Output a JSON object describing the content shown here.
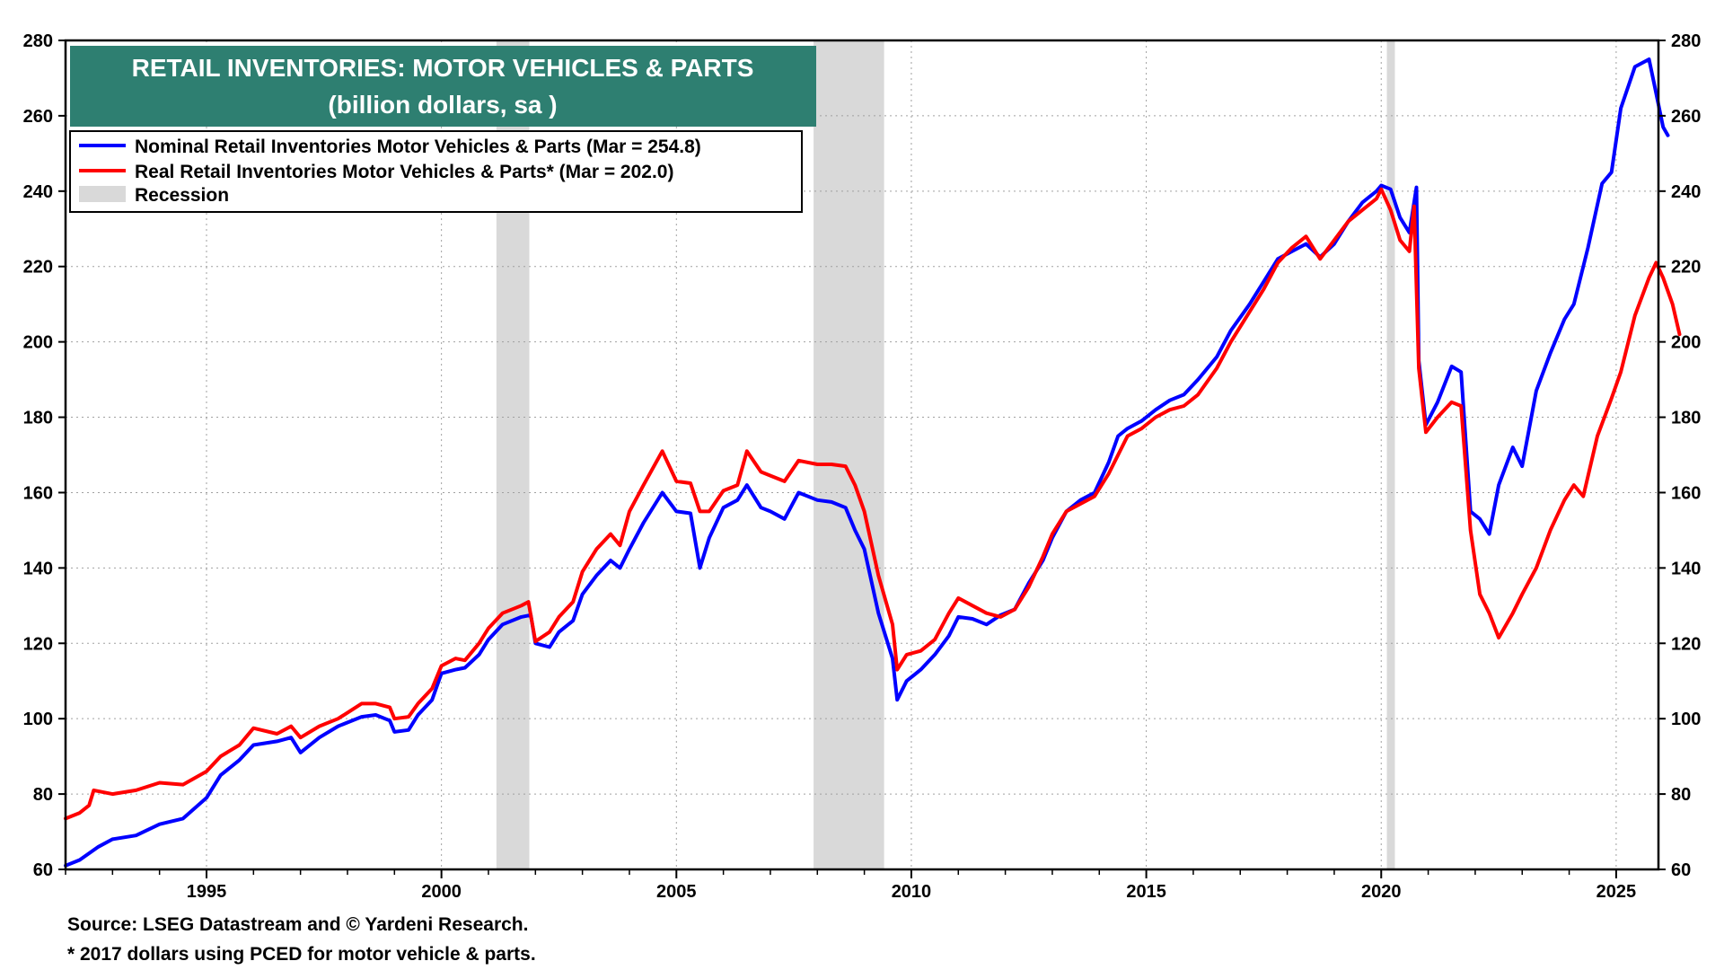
{
  "chart_data": {
    "type": "line",
    "title": "RETAIL INVENTORIES: MOTOR VEHICLES & PARTS",
    "subtitle": "(billion dollars, sa )",
    "ylim": [
      60,
      280
    ],
    "yticks": [
      60,
      80,
      100,
      120,
      140,
      160,
      180,
      200,
      220,
      240,
      260,
      280
    ],
    "xlim": [
      1992.0,
      2025.9
    ],
    "xticks": [
      1995,
      2000,
      2005,
      2010,
      2015,
      2020,
      2025
    ],
    "grid": true,
    "legend_position": "top-left",
    "recession_label": "Recession",
    "recessions": [
      [
        2001.17,
        2001.87
      ],
      [
        2007.92,
        2009.42
      ],
      [
        2020.12,
        2020.29
      ]
    ],
    "series": [
      {
        "name": "Nominal Retail Inventories Motor Vehicles & Parts (Mar = 254.8)",
        "color": "#0000ff",
        "points": [
          [
            1992.0,
            61
          ],
          [
            1992.3,
            62.5
          ],
          [
            1992.7,
            66
          ],
          [
            1993.0,
            68
          ],
          [
            1993.5,
            69
          ],
          [
            1994.0,
            72
          ],
          [
            1994.5,
            73.5
          ],
          [
            1995.0,
            79
          ],
          [
            1995.3,
            85
          ],
          [
            1995.7,
            89
          ],
          [
            1996.0,
            93
          ],
          [
            1996.5,
            94
          ],
          [
            1996.8,
            95
          ],
          [
            1997.0,
            91
          ],
          [
            1997.4,
            95
          ],
          [
            1997.8,
            98
          ],
          [
            1998.3,
            100.5
          ],
          [
            1998.6,
            101
          ],
          [
            1998.9,
            99.5
          ],
          [
            1999.0,
            96.5
          ],
          [
            1999.3,
            97
          ],
          [
            1999.5,
            101
          ],
          [
            1999.8,
            105
          ],
          [
            2000.0,
            112
          ],
          [
            2000.3,
            113
          ],
          [
            2000.5,
            113.5
          ],
          [
            2000.8,
            117
          ],
          [
            2001.0,
            121
          ],
          [
            2001.3,
            125
          ],
          [
            2001.7,
            127
          ],
          [
            2001.9,
            127.5
          ],
          [
            2002.0,
            120
          ],
          [
            2002.3,
            119
          ],
          [
            2002.5,
            123
          ],
          [
            2002.8,
            126
          ],
          [
            2003.0,
            133
          ],
          [
            2003.3,
            138
          ],
          [
            2003.6,
            142
          ],
          [
            2003.8,
            140
          ],
          [
            2004.0,
            145
          ],
          [
            2004.3,
            152
          ],
          [
            2004.7,
            160
          ],
          [
            2005.0,
            155
          ],
          [
            2005.3,
            154.5
          ],
          [
            2005.5,
            140
          ],
          [
            2005.7,
            148
          ],
          [
            2006.0,
            156
          ],
          [
            2006.3,
            158
          ],
          [
            2006.5,
            162
          ],
          [
            2006.8,
            156
          ],
          [
            2007.0,
            155
          ],
          [
            2007.3,
            153
          ],
          [
            2007.6,
            160
          ],
          [
            2008.0,
            158
          ],
          [
            2008.3,
            157.5
          ],
          [
            2008.6,
            156
          ],
          [
            2008.8,
            150
          ],
          [
            2009.0,
            145
          ],
          [
            2009.3,
            128
          ],
          [
            2009.6,
            116
          ],
          [
            2009.7,
            105
          ],
          [
            2009.9,
            110
          ],
          [
            2010.2,
            113
          ],
          [
            2010.5,
            117
          ],
          [
            2010.8,
            122
          ],
          [
            2011.0,
            127
          ],
          [
            2011.3,
            126.5
          ],
          [
            2011.6,
            125
          ],
          [
            2011.9,
            127.5
          ],
          [
            2012.2,
            129
          ],
          [
            2012.5,
            136
          ],
          [
            2012.8,
            142
          ],
          [
            2013.0,
            148
          ],
          [
            2013.3,
            155
          ],
          [
            2013.6,
            158
          ],
          [
            2013.9,
            160
          ],
          [
            2014.2,
            168
          ],
          [
            2014.4,
            175
          ],
          [
            2014.6,
            177
          ],
          [
            2014.9,
            179
          ],
          [
            2015.2,
            182
          ],
          [
            2015.5,
            184.5
          ],
          [
            2015.8,
            186
          ],
          [
            2016.1,
            190
          ],
          [
            2016.5,
            196
          ],
          [
            2016.8,
            203
          ],
          [
            2017.2,
            210
          ],
          [
            2017.5,
            216
          ],
          [
            2017.8,
            222
          ],
          [
            2018.1,
            224
          ],
          [
            2018.4,
            226
          ],
          [
            2018.7,
            222.5
          ],
          [
            2019.0,
            226
          ],
          [
            2019.3,
            232
          ],
          [
            2019.6,
            237
          ],
          [
            2019.9,
            240
          ],
          [
            2020.0,
            241.5
          ],
          [
            2020.2,
            240.5
          ],
          [
            2020.4,
            233
          ],
          [
            2020.6,
            229
          ],
          [
            2020.75,
            241
          ],
          [
            2020.8,
            195
          ],
          [
            2020.95,
            178
          ],
          [
            2021.2,
            184
          ],
          [
            2021.5,
            193.5
          ],
          [
            2021.7,
            192
          ],
          [
            2021.9,
            155
          ],
          [
            2022.1,
            153
          ],
          [
            2022.3,
            149
          ],
          [
            2022.5,
            162
          ],
          [
            2022.8,
            172
          ],
          [
            2023.0,
            167
          ],
          [
            2023.3,
            187
          ],
          [
            2023.6,
            197
          ],
          [
            2023.9,
            206
          ],
          [
            2024.1,
            210
          ],
          [
            2024.4,
            225
          ],
          [
            2024.7,
            242
          ],
          [
            2024.9,
            245
          ],
          [
            2025.1,
            262
          ],
          [
            2025.4,
            273
          ],
          [
            2025.7,
            275
          ],
          [
            2025.8,
            269
          ],
          [
            2026.0,
            257
          ],
          [
            2026.1,
            254.8
          ]
        ]
      },
      {
        "name": "Real Retail Inventories Motor Vehicles & Parts* (Mar = 202.0)",
        "color": "#ff0000",
        "points": [
          [
            1992.0,
            73.5
          ],
          [
            1992.3,
            75
          ],
          [
            1992.5,
            77
          ],
          [
            1992.6,
            81
          ],
          [
            1993.0,
            80
          ],
          [
            1993.5,
            81
          ],
          [
            1994.0,
            83
          ],
          [
            1994.5,
            82.5
          ],
          [
            1995.0,
            86
          ],
          [
            1995.3,
            90
          ],
          [
            1995.7,
            93
          ],
          [
            1996.0,
            97.5
          ],
          [
            1996.5,
            96
          ],
          [
            1996.8,
            98
          ],
          [
            1997.0,
            95
          ],
          [
            1997.4,
            98
          ],
          [
            1997.8,
            100
          ],
          [
            1998.3,
            104
          ],
          [
            1998.6,
            104
          ],
          [
            1998.9,
            103
          ],
          [
            1999.0,
            100
          ],
          [
            1999.3,
            100.5
          ],
          [
            1999.5,
            104
          ],
          [
            1999.8,
            108
          ],
          [
            2000.0,
            114
          ],
          [
            2000.3,
            116
          ],
          [
            2000.5,
            115.5
          ],
          [
            2000.8,
            120
          ],
          [
            2001.0,
            124
          ],
          [
            2001.3,
            128
          ],
          [
            2001.7,
            130
          ],
          [
            2001.85,
            131
          ],
          [
            2002.0,
            120.5
          ],
          [
            2002.3,
            123
          ],
          [
            2002.5,
            127
          ],
          [
            2002.8,
            131
          ],
          [
            2003.0,
            139
          ],
          [
            2003.3,
            145
          ],
          [
            2003.6,
            149
          ],
          [
            2003.8,
            146
          ],
          [
            2004.0,
            155
          ],
          [
            2004.3,
            162
          ],
          [
            2004.7,
            171
          ],
          [
            2005.0,
            163
          ],
          [
            2005.3,
            162.5
          ],
          [
            2005.5,
            155
          ],
          [
            2005.7,
            155
          ],
          [
            2006.0,
            160.5
          ],
          [
            2006.3,
            162
          ],
          [
            2006.5,
            171
          ],
          [
            2006.8,
            165.5
          ],
          [
            2007.0,
            164.5
          ],
          [
            2007.3,
            163
          ],
          [
            2007.6,
            168.5
          ],
          [
            2008.0,
            167.5
          ],
          [
            2008.3,
            167.5
          ],
          [
            2008.6,
            167
          ],
          [
            2008.8,
            162
          ],
          [
            2009.0,
            155
          ],
          [
            2009.3,
            138
          ],
          [
            2009.6,
            125
          ],
          [
            2009.7,
            113
          ],
          [
            2009.9,
            117
          ],
          [
            2010.2,
            118
          ],
          [
            2010.5,
            121
          ],
          [
            2010.8,
            128
          ],
          [
            2011.0,
            132
          ],
          [
            2011.3,
            130
          ],
          [
            2011.6,
            128
          ],
          [
            2011.9,
            127
          ],
          [
            2012.2,
            129
          ],
          [
            2012.5,
            135
          ],
          [
            2012.8,
            143
          ],
          [
            2013.0,
            149
          ],
          [
            2013.3,
            155
          ],
          [
            2013.6,
            157
          ],
          [
            2013.9,
            159
          ],
          [
            2014.2,
            165
          ],
          [
            2014.4,
            170
          ],
          [
            2014.6,
            175
          ],
          [
            2014.9,
            177
          ],
          [
            2015.2,
            180
          ],
          [
            2015.5,
            182
          ],
          [
            2015.8,
            183
          ],
          [
            2016.1,
            186
          ],
          [
            2016.5,
            193
          ],
          [
            2016.8,
            200
          ],
          [
            2017.2,
            208
          ],
          [
            2017.5,
            214
          ],
          [
            2017.8,
            221
          ],
          [
            2018.1,
            225
          ],
          [
            2018.4,
            228
          ],
          [
            2018.7,
            222
          ],
          [
            2019.0,
            227
          ],
          [
            2019.3,
            232
          ],
          [
            2019.6,
            235
          ],
          [
            2019.9,
            238
          ],
          [
            2020.0,
            240.5
          ],
          [
            2020.2,
            235
          ],
          [
            2020.4,
            227
          ],
          [
            2020.6,
            224
          ],
          [
            2020.7,
            236
          ],
          [
            2020.8,
            193
          ],
          [
            2020.95,
            176
          ],
          [
            2021.2,
            180
          ],
          [
            2021.5,
            184
          ],
          [
            2021.7,
            183
          ],
          [
            2021.9,
            150
          ],
          [
            2022.1,
            133
          ],
          [
            2022.3,
            128
          ],
          [
            2022.5,
            121.5
          ],
          [
            2022.8,
            128
          ],
          [
            2023.0,
            133
          ],
          [
            2023.3,
            140
          ],
          [
            2023.6,
            150
          ],
          [
            2023.9,
            158
          ],
          [
            2024.1,
            162
          ],
          [
            2024.3,
            159
          ],
          [
            2024.6,
            175
          ],
          [
            2024.9,
            185
          ],
          [
            2025.1,
            192
          ],
          [
            2025.4,
            207
          ],
          [
            2025.7,
            217
          ],
          [
            2025.85,
            221
          ],
          [
            2026.0,
            217
          ],
          [
            2026.2,
            210
          ],
          [
            2026.35,
            202
          ]
        ]
      }
    ]
  },
  "footer": {
    "source": "Source: LSEG Datastream and © Yardeni Research.",
    "note": "* 2017 dollars using PCED for motor vehicle & parts."
  }
}
